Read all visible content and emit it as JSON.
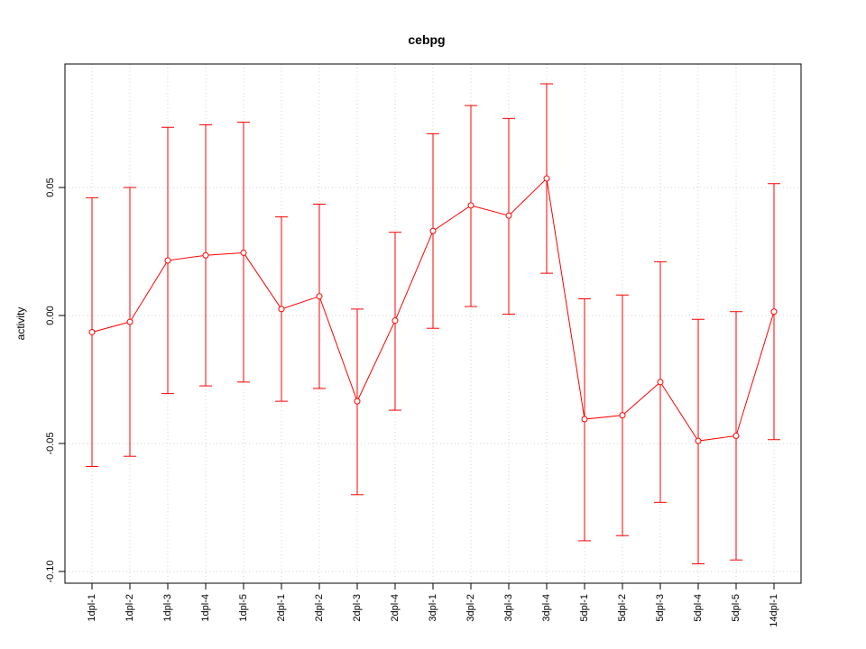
{
  "chart_data": {
    "type": "line",
    "title": "cebpg",
    "xlabel": "",
    "ylabel": "activity",
    "ylim": [
      -0.105,
      0.093
    ],
    "y_ticks": [
      -0.1,
      -0.05,
      0.0,
      0.05
    ],
    "y_tick_labels": [
      "-0.10",
      "-0.05",
      "0.00",
      "0.05"
    ],
    "categories": [
      "1dpl-1",
      "1dpl-2",
      "1dpl-3",
      "1dpl-4",
      "1dpl-5",
      "2dpl-1",
      "2dpl-2",
      "2dpl-3",
      "2dpl-4",
      "3dpl-1",
      "3dpl-2",
      "3dpl-3",
      "3dpl-4",
      "5dpl-1",
      "5dpl-2",
      "5dpl-3",
      "5dpl-4",
      "5dpl-5",
      "14dpl-1"
    ],
    "series": [
      {
        "values": [
          -0.0065,
          -0.0025,
          0.0215,
          0.0235,
          0.0245,
          0.0025,
          0.0075,
          -0.0335,
          -0.002,
          0.033,
          0.043,
          0.039,
          0.0535,
          -0.0405,
          -0.039,
          -0.026,
          -0.049,
          -0.047,
          0.0015
        ],
        "lower": [
          -0.059,
          -0.055,
          -0.0305,
          -0.0275,
          -0.026,
          -0.0335,
          -0.0285,
          -0.07,
          -0.037,
          -0.005,
          0.0035,
          0.0005,
          0.0165,
          -0.088,
          -0.086,
          -0.073,
          -0.097,
          -0.0955,
          -0.0485
        ],
        "upper": [
          0.046,
          0.05,
          0.0735,
          0.0745,
          0.0755,
          0.0385,
          0.0435,
          0.0025,
          0.0325,
          0.071,
          0.082,
          0.077,
          0.0905,
          0.0065,
          0.008,
          0.021,
          -0.0015,
          0.0015,
          0.0515
        ]
      }
    ],
    "grid": true,
    "line_color": "#ff0000"
  }
}
